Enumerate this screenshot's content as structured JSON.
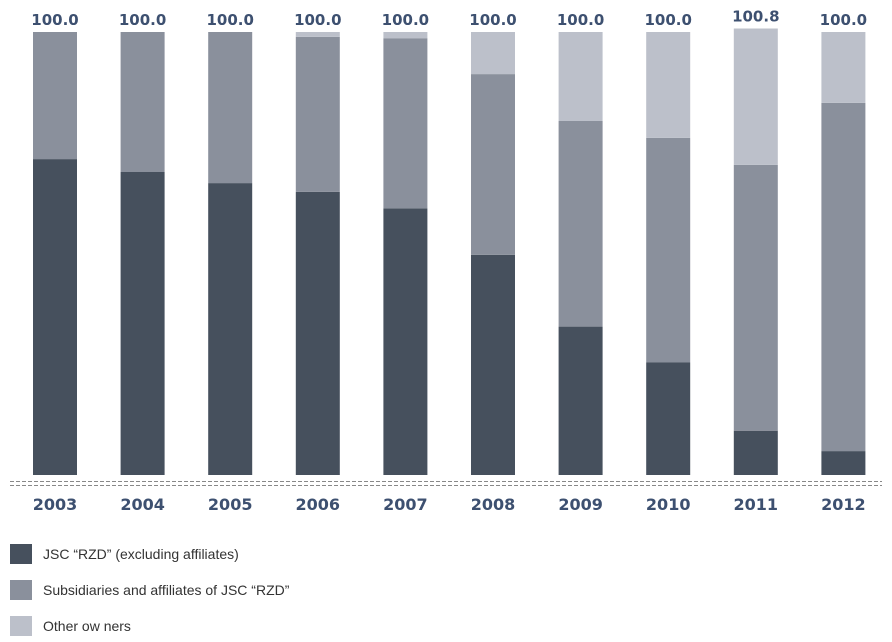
{
  "chart_data": {
    "type": "bar",
    "stacked": true,
    "categories": [
      "2003",
      "2004",
      "2005",
      "2006",
      "2007",
      "2008",
      "2009",
      "2010",
      "2011",
      "2012"
    ],
    "totals": [
      "100.0",
      "100.0",
      "100.0",
      "100.0",
      "100.0",
      "100.0",
      "100.0",
      "100.0",
      "100.8",
      "100.0"
    ],
    "series": [
      {
        "name": "JSC “RZD” (excluding affiliates)",
        "color": "#46505d",
        "values": [
          71.3,
          68.4,
          65.9,
          63.9,
          60.2,
          49.7,
          33.5,
          25.4,
          10.0,
          5.4
        ]
      },
      {
        "name": "Subsidiaries and affiliates of JSC “RZD”",
        "color": "#8a909c",
        "values": [
          28.7,
          31.6,
          34.1,
          35.0,
          38.4,
          40.8,
          46.4,
          50.7,
          60.0,
          78.6
        ]
      },
      {
        "name": "Other ow ners",
        "color": "#bcc0ca",
        "values": [
          0.0,
          0.0,
          0.0,
          1.1,
          1.4,
          9.5,
          20.1,
          23.9,
          30.8,
          16.0
        ]
      }
    ],
    "ylim": [
      0,
      100.8
    ],
    "title": "",
    "xlabel": "",
    "ylabel": "",
    "grid": false,
    "legend_position": "bottom-left",
    "label_color": "#3d5070"
  }
}
